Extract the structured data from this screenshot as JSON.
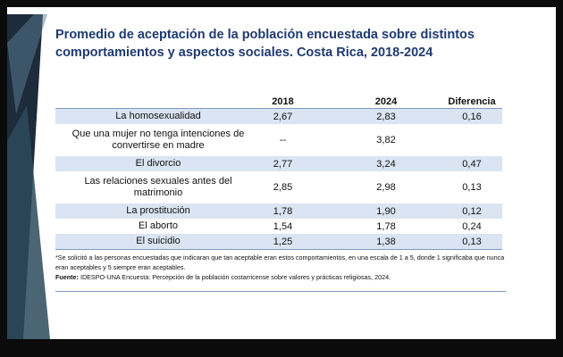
{
  "title_line1": "Promedio de aceptación de la población encuestada sobre distintos",
  "title_line2": "comportamientos y aspectos sociales. Costa Rica, 2018-2024",
  "table": {
    "headers": [
      "",
      "2018",
      "2024",
      "Diferencia"
    ],
    "rows": [
      {
        "label": "La homosexualidad",
        "y2018": "2,67",
        "y2024": "2,83",
        "diff": "0,16"
      },
      {
        "label_line1": "Que una mujer no tenga intenciones de",
        "label_line2": "convertirse en madre",
        "y2018": "--",
        "y2024": "3,82",
        "diff": ""
      },
      {
        "label": "El divorcio",
        "y2018": "2,77",
        "y2024": "3,24",
        "diff": "0,47"
      },
      {
        "label_line1": "Las relaciones sexuales antes del",
        "label_line2": "matrimonio",
        "y2018": "2,85",
        "y2024": "2,98",
        "diff": "0,13"
      },
      {
        "label": "La prostitución",
        "y2018": "1,78",
        "y2024": "1,90",
        "diff": "0,12"
      },
      {
        "label": "El aborto",
        "y2018": "1,54",
        "y2024": "1,78",
        "diff": "0,24"
      },
      {
        "label": "El suicidio",
        "y2018": "1,25",
        "y2024": "1,38",
        "diff": "0,13"
      }
    ]
  },
  "footnote": "*Se solicitó a las personas encuestadas que indicaran que tan aceptable eran estos comportamientos, en una escala de 1 a 5, donde 1 significaba que nunca eran aceptables y 5 siempre eran aceptables.",
  "source_label": "Fuente:",
  "source_text": "IDESPO-UNA Encuesta: Percepción de la población costarricense sobre valores y prácticas religiosas, 2024.",
  "colors": {
    "title": "#1f3a72",
    "row_shade": "#dbe4f2",
    "rule": "#7f97c4",
    "deco_dark": "#1d2b3a"
  }
}
